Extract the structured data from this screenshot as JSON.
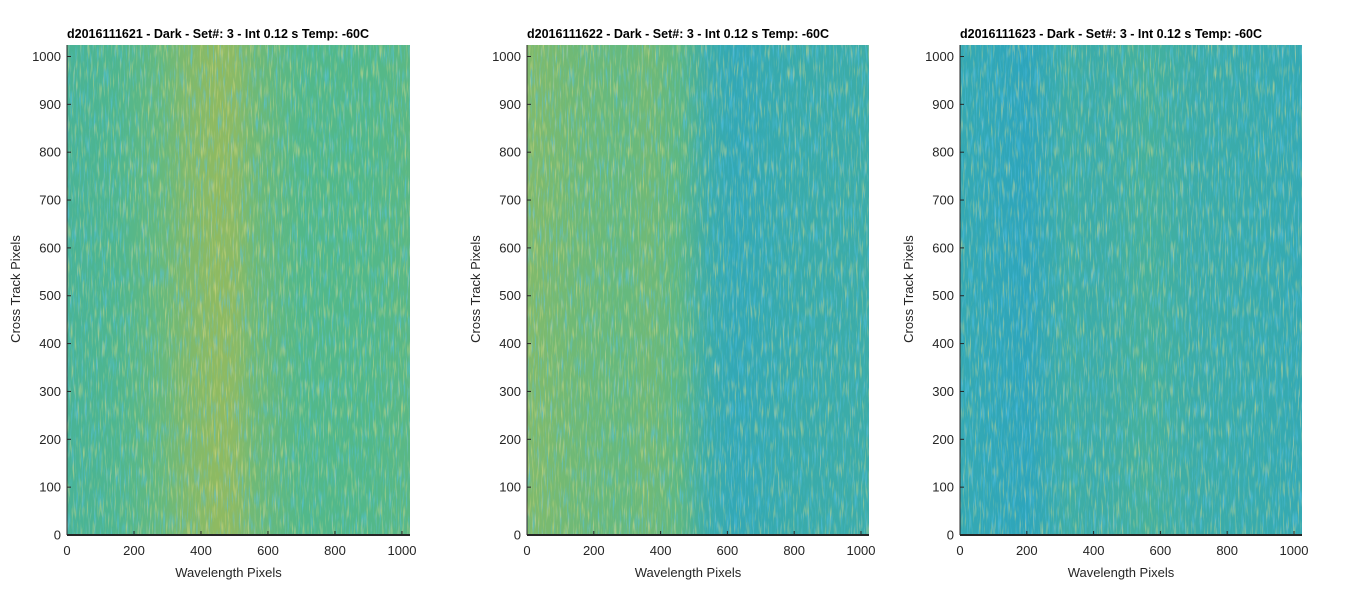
{
  "chart_data": [
    {
      "type": "heatmap",
      "title": "d2016111621 - Dark - Set#: 3 - Int 0.12 s Temp: -60C",
      "xlabel": "Wavelength Pixels",
      "ylabel": "Cross Track Pixels",
      "xlim": [
        0,
        1024
      ],
      "ylim": [
        0,
        1024
      ],
      "xticks": [
        0,
        200,
        400,
        600,
        800,
        1000
      ],
      "yticks": [
        0,
        100,
        200,
        300,
        400,
        500,
        600,
        700,
        800,
        900,
        1000
      ],
      "grid": false,
      "colormap": "parula",
      "colors": {
        "low": "#1a9bd6",
        "mid": "#52b88a",
        "high": "#c8bc3c"
      },
      "column_level_profile": [
        {
          "x": 0,
          "level": 0.42
        },
        {
          "x": 150,
          "level": 0.47
        },
        {
          "x": 280,
          "level": 0.58
        },
        {
          "x": 350,
          "level": 0.68
        },
        {
          "x": 450,
          "level": 0.76
        },
        {
          "x": 500,
          "level": 0.74
        },
        {
          "x": 560,
          "level": 0.62
        },
        {
          "x": 700,
          "level": 0.5
        },
        {
          "x": 900,
          "level": 0.5
        },
        {
          "x": 1024,
          "level": 0.54
        }
      ]
    },
    {
      "type": "heatmap",
      "title": "d2016111622 - Dark - Set#: 3 - Int 0.12 s Temp: -60C",
      "xlabel": "Wavelength Pixels",
      "ylabel": "Cross Track Pixels",
      "xlim": [
        0,
        1024
      ],
      "ylim": [
        0,
        1024
      ],
      "xticks": [
        0,
        200,
        400,
        600,
        800,
        1000
      ],
      "yticks": [
        0,
        100,
        200,
        300,
        400,
        500,
        600,
        700,
        800,
        900,
        1000
      ],
      "grid": false,
      "colormap": "parula",
      "colors": {
        "low": "#1a9bd6",
        "mid": "#52b88a",
        "high": "#c8bc3c"
      },
      "column_level_profile": [
        {
          "x": 0,
          "level": 0.7
        },
        {
          "x": 150,
          "level": 0.62
        },
        {
          "x": 300,
          "level": 0.58
        },
        {
          "x": 360,
          "level": 0.63
        },
        {
          "x": 450,
          "level": 0.55
        },
        {
          "x": 540,
          "level": 0.3
        },
        {
          "x": 620,
          "level": 0.22
        },
        {
          "x": 800,
          "level": 0.28
        },
        {
          "x": 1024,
          "level": 0.3
        }
      ]
    },
    {
      "type": "heatmap",
      "title": "d2016111623 - Dark - Set#: 3 - Int 0.12 s Temp: -60C",
      "xlabel": "Wavelength Pixels",
      "ylabel": "Cross Track Pixels",
      "xlim": [
        0,
        1024
      ],
      "ylim": [
        0,
        1024
      ],
      "xticks": [
        0,
        200,
        400,
        600,
        800,
        1000
      ],
      "yticks": [
        0,
        100,
        200,
        300,
        400,
        500,
        600,
        700,
        800,
        900,
        1000
      ],
      "grid": false,
      "colormap": "parula",
      "colors": {
        "low": "#1a9bd6",
        "mid": "#52b88a",
        "high": "#c8bc3c"
      },
      "column_level_profile": [
        {
          "x": 0,
          "level": 0.24
        },
        {
          "x": 200,
          "level": 0.18
        },
        {
          "x": 330,
          "level": 0.33
        },
        {
          "x": 400,
          "level": 0.3
        },
        {
          "x": 560,
          "level": 0.38
        },
        {
          "x": 700,
          "level": 0.3
        },
        {
          "x": 900,
          "level": 0.27
        },
        {
          "x": 1024,
          "level": 0.24
        }
      ]
    }
  ]
}
